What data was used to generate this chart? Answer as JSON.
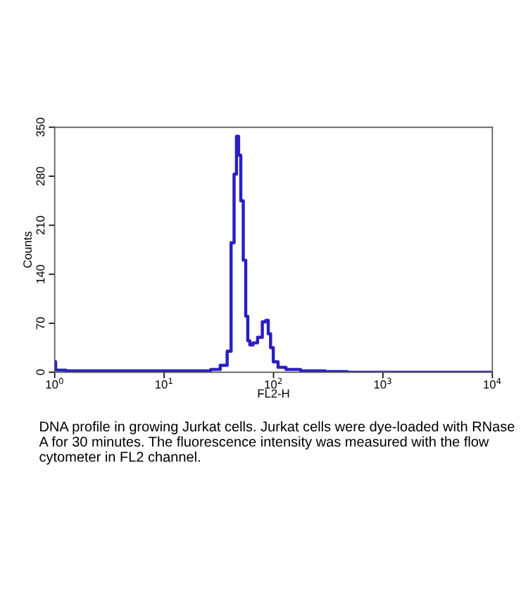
{
  "chart_data": {
    "type": "step",
    "xlabel": "FL2-H",
    "ylabel": "Counts",
    "log": "x",
    "xlim": [
      1,
      10000
    ],
    "xticks": [
      {
        "value": 1,
        "label": "10$^{0}$"
      },
      {
        "value": 10,
        "label": "10$^{1}$"
      },
      {
        "value": 100,
        "label": "10$^{2}$"
      },
      {
        "value": 1000,
        "label": "10$^{3}$"
      },
      {
        "value": 10000,
        "label": "10$^{4}$"
      }
    ],
    "ylim": [
      0,
      350
    ],
    "yticks": [
      0,
      70,
      140,
      210,
      280,
      350
    ],
    "series": [
      {
        "color": "#2a1fbf",
        "x": [
          1,
          1.04,
          1.5,
          4.1,
          10.9,
          24,
          29.3,
          35.8,
          39.6,
          42.3,
          44.9,
          46.8,
          49.1,
          51.3,
          54.5,
          56.9,
          59.5,
          62,
          68,
          75,
          83,
          87,
          92,
          96,
          103,
          117,
          143,
          211,
          380,
          566,
          1500,
          10000
        ],
        "values": [
          15,
          3,
          2,
          2,
          2,
          2,
          4,
          10,
          30,
          185,
          283,
          337,
          310,
          245,
          160,
          80,
          45,
          39,
          42,
          50,
          72,
          74,
          55,
          35,
          15,
          7,
          4,
          2,
          1,
          0,
          0,
          0
        ]
      }
    ],
    "grid": false,
    "legend": false,
    "annotations": [
      "DNA profile in growing Jurkat cells. Jurkat cells were dye-loaded with RNase A for 30 minutes. The fluorescence intensity was measured with the flow cytometer in FL2 channel."
    ]
  }
}
